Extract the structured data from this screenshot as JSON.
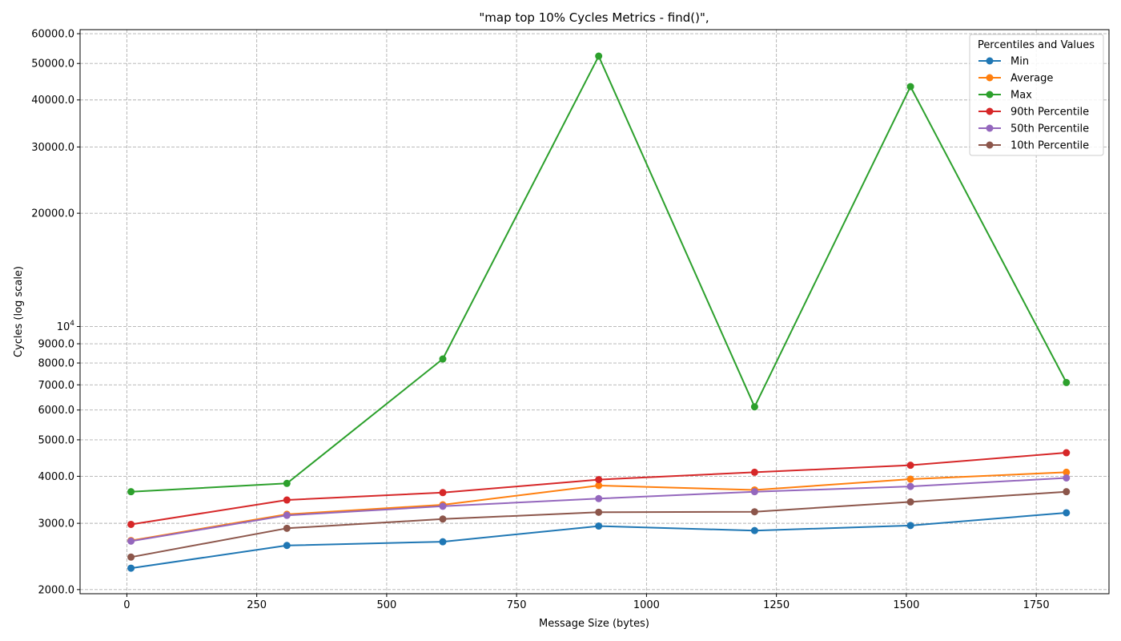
{
  "chart_data": {
    "type": "line",
    "title": "\"map top 10% Cycles Metrics - find()\",",
    "xlabel": "Message Size (bytes)",
    "ylabel": "Cycles (log scale)",
    "yscale": "log",
    "xlim": [
      -90,
      1890
    ],
    "ylim": [
      1950,
      61500
    ],
    "grid": true,
    "legend_position": "top-right",
    "legend_title": "Percentiles and Values",
    "x": [
      8,
      308,
      608,
      908,
      1208,
      1508,
      1808
    ],
    "x_ticks": [
      {
        "value": 0,
        "label": "0"
      },
      {
        "value": 250,
        "label": "250"
      },
      {
        "value": 500,
        "label": "500"
      },
      {
        "value": 750,
        "label": "750"
      },
      {
        "value": 1000,
        "label": "1000"
      },
      {
        "value": 1250,
        "label": "1250"
      },
      {
        "value": 1500,
        "label": "1500"
      },
      {
        "value": 1750,
        "label": "1750"
      }
    ],
    "y_ticks": [
      {
        "value": 2000,
        "label": "2000.0"
      },
      {
        "value": 3000,
        "label": "3000.0"
      },
      {
        "value": 4000,
        "label": "4000.0"
      },
      {
        "value": 5000,
        "label": "5000.0"
      },
      {
        "value": 6000,
        "label": "6000.0"
      },
      {
        "value": 7000,
        "label": "7000.0"
      },
      {
        "value": 8000,
        "label": "8000.0"
      },
      {
        "value": 9000,
        "label": "9000.0"
      },
      {
        "value": 10000,
        "label": "10",
        "sup": "4"
      },
      {
        "value": 20000,
        "label": "20000.0"
      },
      {
        "value": 30000,
        "label": "30000.0"
      },
      {
        "value": 40000,
        "label": "40000.0"
      },
      {
        "value": 50000,
        "label": "50000.0"
      },
      {
        "value": 60000,
        "label": "60000.0"
      }
    ],
    "series": [
      {
        "name": "Min",
        "color": "#1f77b4",
        "values": [
          2280,
          2620,
          2680,
          2950,
          2870,
          2960,
          3200
        ]
      },
      {
        "name": "Average",
        "color": "#ff7f0e",
        "values": [
          2700,
          3170,
          3360,
          3780,
          3680,
          3930,
          4100
        ]
      },
      {
        "name": "Max",
        "color": "#2ca02c",
        "values": [
          3640,
          3830,
          8200,
          52300,
          6120,
          43400,
          7100
        ]
      },
      {
        "name": "90th Percentile",
        "color": "#d62728",
        "values": [
          2980,
          3460,
          3620,
          3920,
          4100,
          4280,
          4620
        ]
      },
      {
        "name": "50th Percentile",
        "color": "#9467bd",
        "values": [
          2690,
          3150,
          3330,
          3490,
          3640,
          3760,
          3960
        ]
      },
      {
        "name": "10th Percentile",
        "color": "#8c564b",
        "values": [
          2440,
          2910,
          3080,
          3210,
          3220,
          3420,
          3640
        ]
      }
    ]
  }
}
